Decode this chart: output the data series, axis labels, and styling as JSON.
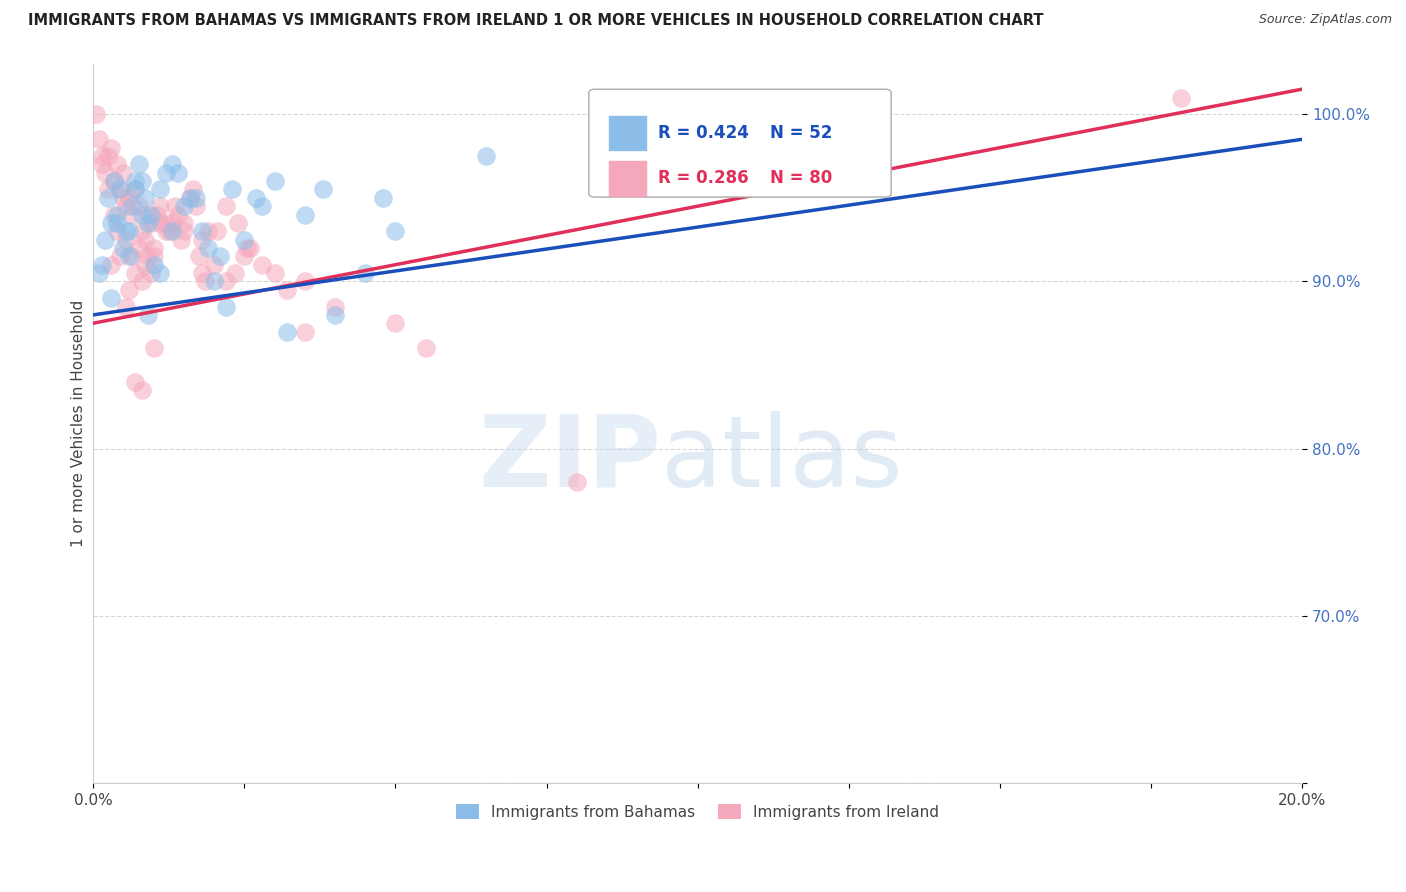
{
  "title": "IMMIGRANTS FROM BAHAMAS VS IMMIGRANTS FROM IRELAND 1 OR MORE VEHICLES IN HOUSEHOLD CORRELATION CHART",
  "source": "Source: ZipAtlas.com",
  "ylabel": "1 or more Vehicles in Household",
  "x_min": 0.0,
  "x_max": 20.0,
  "y_min": 60.0,
  "y_max": 103.0,
  "x_tick_positions": [
    0.0,
    2.5,
    5.0,
    7.5,
    10.0,
    12.5,
    15.0,
    17.5,
    20.0
  ],
  "x_tick_labels": [
    "0.0%",
    "",
    "",
    "",
    "",
    "",
    "",
    "",
    "20.0%"
  ],
  "y_tick_positions": [
    60.0,
    70.0,
    80.0,
    90.0,
    100.0
  ],
  "y_tick_labels": [
    "",
    "70.0%",
    "80.0%",
    "90.0%",
    "100.0%"
  ],
  "bahamas_color": "#8BBDE8",
  "ireland_color": "#F5A8BC",
  "trendline_bahamas_color": "#1A4FBB",
  "trendline_ireland_color": "#E0305A",
  "legend_r_bahamas": "0.424",
  "legend_n_bahamas": "52",
  "legend_r_ireland": "0.286",
  "legend_n_ireland": "80",
  "legend_label_bahamas": "Immigrants from Bahamas",
  "legend_label_ireland": "Immigrants from Ireland",
  "R_bahamas": 0.424,
  "N_bahamas": 52,
  "R_ireland": 0.286,
  "N_ireland": 80,
  "trendline_bahamas_x0": 0.0,
  "trendline_bahamas_y0": 88.0,
  "trendline_bahamas_x1": 20.0,
  "trendline_bahamas_y1": 98.5,
  "trendline_ireland_x0": 0.0,
  "trendline_ireland_y0": 87.5,
  "trendline_ireland_x1": 20.0,
  "trendline_ireland_y1": 101.5,
  "bahamas_x": [
    0.1,
    0.15,
    0.2,
    0.25,
    0.3,
    0.35,
    0.4,
    0.45,
    0.5,
    0.55,
    0.6,
    0.65,
    0.7,
    0.75,
    0.8,
    0.85,
    0.9,
    0.95,
    1.0,
    1.1,
    1.2,
    1.3,
    1.5,
    1.6,
    1.8,
    2.0,
    2.2,
    2.5,
    2.8,
    3.0,
    3.2,
    3.5,
    4.0,
    4.5,
    5.0,
    1.4,
    0.7,
    1.9,
    2.3,
    0.8,
    1.1,
    0.6,
    0.9,
    1.7,
    2.1,
    3.8,
    0.4,
    0.3,
    2.7,
    1.3,
    4.8,
    6.5
  ],
  "bahamas_y": [
    90.5,
    91.0,
    92.5,
    95.0,
    93.5,
    96.0,
    94.0,
    95.5,
    92.0,
    93.0,
    91.5,
    94.5,
    95.5,
    97.0,
    96.0,
    95.0,
    93.5,
    94.0,
    91.0,
    95.5,
    96.5,
    97.0,
    94.5,
    95.0,
    93.0,
    90.0,
    88.5,
    92.5,
    94.5,
    96.0,
    87.0,
    94.0,
    88.0,
    90.5,
    93.0,
    96.5,
    96.0,
    92.0,
    95.5,
    94.0,
    90.5,
    93.0,
    88.0,
    95.0,
    91.5,
    95.5,
    93.5,
    89.0,
    95.0,
    93.0,
    95.0,
    97.5
  ],
  "ireland_x": [
    0.05,
    0.1,
    0.15,
    0.2,
    0.25,
    0.3,
    0.35,
    0.4,
    0.45,
    0.5,
    0.55,
    0.6,
    0.65,
    0.7,
    0.75,
    0.8,
    0.85,
    0.9,
    0.95,
    1.0,
    1.1,
    1.2,
    1.3,
    1.4,
    1.5,
    1.6,
    1.7,
    1.8,
    1.9,
    2.0,
    2.2,
    2.4,
    2.6,
    2.8,
    3.0,
    0.5,
    0.7,
    0.9,
    1.1,
    0.8,
    0.6,
    1.0,
    1.5,
    2.5,
    3.5,
    0.4,
    0.3,
    1.2,
    1.8,
    2.2,
    0.25,
    0.55,
    0.75,
    1.05,
    1.35,
    1.65,
    2.05,
    2.55,
    0.45,
    0.85,
    1.25,
    1.75,
    0.65,
    0.95,
    0.35,
    0.15,
    1.45,
    2.35,
    0.55,
    1.85,
    3.2,
    4.0,
    5.0,
    0.7,
    0.8,
    1.0,
    3.5,
    5.5,
    8.0,
    18.0
  ],
  "ireland_y": [
    100.0,
    98.5,
    97.0,
    96.5,
    97.5,
    98.0,
    96.0,
    97.0,
    95.5,
    96.5,
    94.5,
    95.0,
    94.0,
    95.5,
    94.5,
    93.0,
    92.5,
    94.0,
    93.5,
    91.5,
    94.5,
    93.0,
    93.5,
    94.0,
    93.5,
    95.0,
    94.5,
    92.5,
    93.0,
    91.0,
    94.5,
    93.5,
    92.0,
    91.0,
    90.5,
    95.0,
    90.5,
    91.5,
    93.5,
    90.0,
    89.5,
    92.0,
    93.0,
    91.5,
    90.0,
    93.0,
    91.0,
    93.5,
    90.5,
    90.0,
    95.5,
    92.5,
    92.0,
    94.0,
    94.5,
    95.5,
    93.0,
    92.0,
    91.5,
    91.0,
    93.0,
    91.5,
    91.5,
    90.5,
    94.0,
    97.5,
    92.5,
    90.5,
    88.5,
    90.0,
    89.5,
    88.5,
    87.5,
    84.0,
    83.5,
    86.0,
    87.0,
    86.0,
    78.0,
    101.0
  ]
}
